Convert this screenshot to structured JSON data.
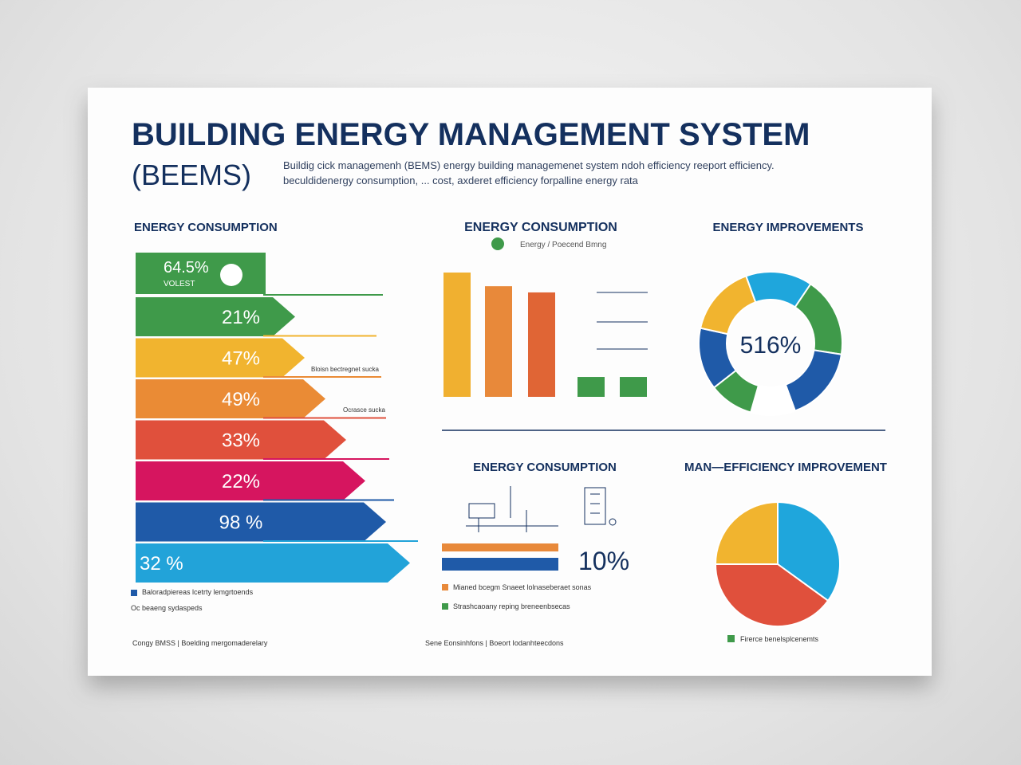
{
  "header": {
    "title": "BUILDING ENERGY MANAGEMENT SYSTEM",
    "title_abbr": "(BEEMS)",
    "subtitle": [
      "Buildig cick managemenh (BEMS) energy building managemenet system ndoh efficiency reeport efficiency.",
      "beculdidenergy consumption, ... cost, axderet efficiency forpalline energy rata"
    ]
  },
  "arrows_panel": {
    "title": "ENERGY CONSUMPTION",
    "top_box": {
      "label": "64.5%",
      "sublabel": "VOLEST"
    },
    "arrows": [
      {
        "label": "21%",
        "color": "#3f9a4a"
      },
      {
        "label": "47%",
        "color": "#f1b42f"
      },
      {
        "label": "49%",
        "color": "#ea8b35"
      },
      {
        "label": "33%",
        "color": "#e0503c"
      },
      {
        "label": "22%",
        "color": "#d6155f"
      },
      {
        "label": "98 %",
        "color": "#1f5aa8"
      },
      {
        "label": "32 %",
        "color": "#22a3d9"
      }
    ],
    "notes": [
      "Bloisn bectregnet sucka",
      "Ocrasce sucka"
    ],
    "legend": [
      "Baloradpiereas lcetrty lemgrtoends",
      "Oc beaeng sydaspeds"
    ],
    "footer": "Congy BMSS | Boelding mergomaderelary"
  },
  "chart_data": [
    {
      "type": "bar",
      "title": "ENERGY CONSUMPTION",
      "subtitle": "Energy / Poecend Bmng",
      "categories": [
        null,
        null,
        null,
        null,
        null
      ],
      "values": [
        100,
        89,
        84,
        16,
        16
      ],
      "colors": [
        "#f0b030",
        "#e8893a",
        "#e06535",
        "#3f9a4a",
        "#3f9a4a"
      ]
    },
    {
      "type": "donut",
      "title": "ENERGY IMPROVEMENTS",
      "center_label": "516%",
      "values": [
        15,
        18,
        17,
        10,
        10,
        14,
        16
      ],
      "colors": [
        "#1fa6dc",
        "#3f9a4a",
        "#1f5aa8",
        "#ffffff",
        "#3f9a4a",
        "#1f5aa8",
        "#f1b42f"
      ]
    },
    {
      "type": "pie",
      "title": "MAN—EFFICIENCY IMPROVEMENT",
      "values": [
        35,
        40,
        25
      ],
      "colors": [
        "#1fa6dc",
        "#e0503c",
        "#f1b42f"
      ],
      "legend": "Firerce benelsplcenemts"
    }
  ],
  "consumption_panel": {
    "title": "ENERGY CONSUMPTION",
    "big_label": "10%",
    "legend": [
      "Mianed bcegm Snaeet lolnaseberaet sonas",
      "Strashcaoany reping breneenbsecas"
    ],
    "footer": "Sene Eonsinhfons | Boeort Iodanhteecdons"
  }
}
